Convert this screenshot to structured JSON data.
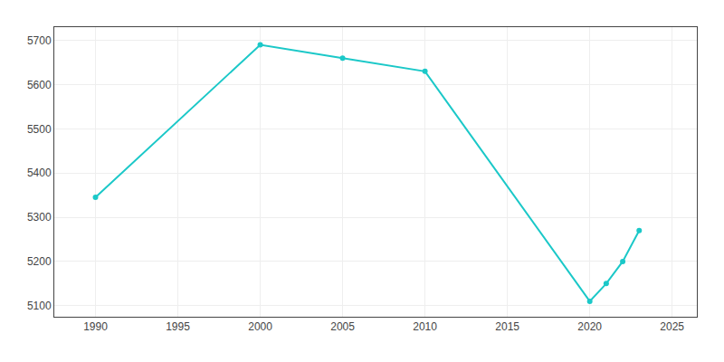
{
  "chart_data": {
    "type": "line",
    "x": [
      1990,
      2000,
      2005,
      2010,
      2020,
      2021,
      2022,
      2023
    ],
    "values": [
      5345,
      5690,
      5660,
      5630,
      5110,
      5150,
      5200,
      5270
    ],
    "color": "#1bc8c8",
    "marker": "circle",
    "xlim": [
      1987.5,
      2026.5
    ],
    "ylim": [
      5075,
      5730
    ],
    "xticks": [
      1990,
      1995,
      2000,
      2005,
      2010,
      2015,
      2020,
      2025
    ],
    "yticks": [
      5100,
      5200,
      5300,
      5400,
      5500,
      5600,
      5700
    ],
    "grid": true
  }
}
